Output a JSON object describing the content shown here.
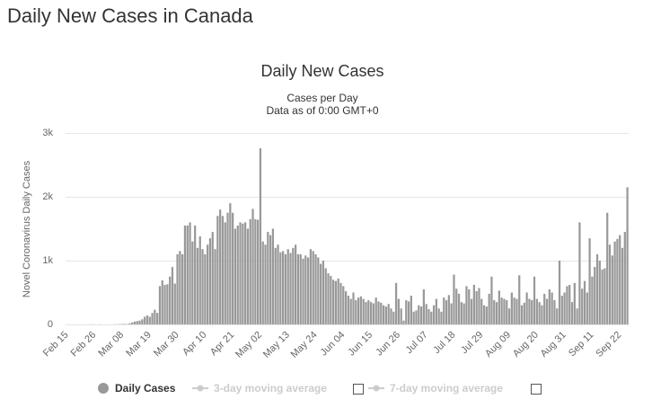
{
  "page_title": "Daily New Cases in Canada",
  "chart_data": {
    "type": "bar",
    "title": "Daily New Cases",
    "subtitle": "Cases per Day",
    "note": "Data as of 0:00 GMT+0",
    "y_label": "Novel Coronavirus Daily Cases",
    "categories": [
      "Feb 15",
      null,
      null,
      null,
      null,
      null,
      null,
      null,
      null,
      null,
      null,
      "Feb 26",
      null,
      null,
      null,
      null,
      null,
      null,
      null,
      null,
      null,
      null,
      "Mar 08",
      null,
      null,
      null,
      null,
      null,
      null,
      null,
      null,
      null,
      null,
      "Mar 19",
      null,
      null,
      null,
      null,
      null,
      null,
      null,
      null,
      null,
      null,
      "Mar 30",
      null,
      null,
      null,
      null,
      null,
      null,
      null,
      null,
      null,
      null,
      "Apr 10",
      null,
      null,
      null,
      null,
      null,
      null,
      null,
      null,
      null,
      null,
      "Apr 21",
      null,
      null,
      null,
      null,
      null,
      null,
      null,
      null,
      null,
      null,
      "May 02",
      null,
      null,
      null,
      null,
      null,
      null,
      null,
      null,
      null,
      null,
      "May 13",
      null,
      null,
      null,
      null,
      null,
      null,
      null,
      null,
      null,
      null,
      "May 24",
      null,
      null,
      null,
      null,
      null,
      null,
      null,
      null,
      null,
      null,
      "Jun 04",
      null,
      null,
      null,
      null,
      null,
      null,
      null,
      null,
      null,
      null,
      "Jun 15",
      null,
      null,
      null,
      null,
      null,
      null,
      null,
      null,
      null,
      null,
      "Jun 26",
      null,
      null,
      null,
      null,
      null,
      null,
      null,
      null,
      null,
      null,
      "Jul 07",
      null,
      null,
      null,
      null,
      null,
      null,
      null,
      null,
      null,
      null,
      "Jul 18",
      null,
      null,
      null,
      null,
      null,
      null,
      null,
      null,
      null,
      null,
      "Jul 29",
      null,
      null,
      null,
      null,
      null,
      null,
      null,
      null,
      null,
      null,
      "Aug 09",
      null,
      null,
      null,
      null,
      null,
      null,
      null,
      null,
      null,
      null,
      "Aug 20",
      null,
      null,
      null,
      null,
      null,
      null,
      null,
      null,
      null,
      null,
      "Aug 31",
      null,
      null,
      null,
      null,
      null,
      null,
      null,
      null,
      null,
      null,
      "Sep 11",
      null,
      null,
      null,
      null,
      null,
      null,
      null,
      null,
      null,
      null,
      "Sep 22",
      null,
      null,
      null
    ],
    "series": [
      {
        "name": "Daily Cases",
        "color": "#999999",
        "values": [
          0,
          0,
          0,
          0,
          1,
          0,
          0,
          0,
          0,
          1,
          2,
          1,
          0,
          2,
          0,
          1,
          1,
          0,
          0,
          3,
          3,
          4,
          6,
          8,
          5,
          15,
          30,
          45,
          52,
          60,
          80,
          120,
          140,
          120,
          180,
          230,
          180,
          600,
          690,
          620,
          630,
          750,
          900,
          640,
          1100,
          1150,
          1100,
          1550,
          1550,
          1600,
          1300,
          1550,
          1200,
          1380,
          1180,
          1100,
          1250,
          1350,
          1450,
          1180,
          1700,
          1800,
          1700,
          1600,
          1750,
          1900,
          1750,
          1500,
          1550,
          1600,
          1580,
          1600,
          1500,
          1650,
          1810,
          1650,
          1640,
          2760,
          1300,
          1250,
          1450,
          1400,
          1500,
          1200,
          1250,
          1130,
          1150,
          1100,
          1180,
          1120,
          1200,
          1250,
          1100,
          1100,
          1030,
          1080,
          1050,
          1180,
          1150,
          1100,
          1050,
          950,
          1000,
          880,
          800,
          760,
          700,
          680,
          720,
          650,
          600,
          520,
          450,
          400,
          500,
          380,
          420,
          440,
          400,
          350,
          380,
          350,
          330,
          420,
          360,
          340,
          300,
          280,
          320,
          250,
          200,
          650,
          400,
          250,
          60,
          380,
          360,
          450,
          200,
          220,
          300,
          280,
          550,
          320,
          240,
          200,
          300,
          400,
          250,
          200,
          420,
          380,
          460,
          330,
          780,
          560,
          480,
          350,
          330,
          600,
          550,
          400,
          620,
          520,
          570,
          400,
          300,
          280,
          480,
          750,
          380,
          350,
          530,
          420,
          400,
          380,
          250,
          500,
          420,
          400,
          770,
          300,
          340,
          500,
          400,
          380,
          750,
          400,
          350,
          300,
          480,
          400,
          550,
          500,
          380,
          250,
          1000,
          450,
          500,
          600,
          620,
          350,
          650,
          250,
          1600,
          560,
          680,
          500,
          1350,
          750,
          900,
          1100,
          1000,
          860,
          880,
          1750,
          1250,
          1080,
          1300,
          1340,
          1400,
          1200,
          1450,
          2150
        ]
      }
    ],
    "inactive_legend": [
      "3-day moving average",
      "7-day moving average"
    ],
    "ylim": [
      0,
      3000
    ],
    "yticks": [
      0,
      {
        "value": 1000,
        "label": "1k"
      },
      {
        "value": 2000,
        "label": "2k"
      },
      {
        "value": 3000,
        "label": "3k"
      }
    ],
    "grid": true
  }
}
